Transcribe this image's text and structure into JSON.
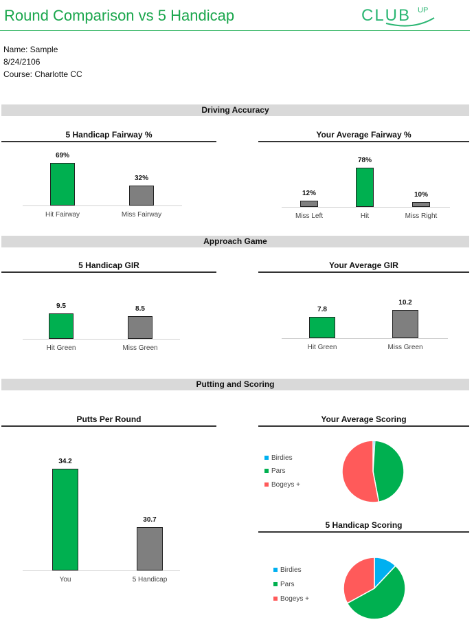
{
  "header": {
    "title": "Round Comparison vs 5 Handicap",
    "logo_text": "CLUBUP"
  },
  "info": {
    "name": "Name: Sample",
    "date": "8/24/2106",
    "course": "Course: Charlotte CC"
  },
  "sections": [
    "Driving Accuracy",
    "Approach Game",
    "Putting and Scoring"
  ],
  "colors": {
    "green": "#00b050",
    "gray": "#7f7f7f",
    "blue": "#00b0f0",
    "red": "#ff5a5a",
    "brand": "#1aa64c"
  },
  "chart_data": [
    {
      "type": "bar",
      "title": "5 Handicap Fairway %",
      "categories": [
        "Hit Fairway",
        "Miss Fairway"
      ],
      "values": [
        69,
        32
      ],
      "labels": [
        "69%",
        "32%"
      ],
      "bar_colors": [
        "green",
        "gray"
      ]
    },
    {
      "type": "bar",
      "title": "Your Average Fairway %",
      "categories": [
        "Miss Left",
        "Hit",
        "Miss Right"
      ],
      "values": [
        12,
        78,
        10
      ],
      "labels": [
        "12%",
        "78%",
        "10%"
      ],
      "bar_colors": [
        "gray",
        "green",
        "gray"
      ]
    },
    {
      "type": "bar",
      "title": "5 Handicap GIR",
      "categories": [
        "Hit Green",
        "Miss Green"
      ],
      "values": [
        9.5,
        8.5
      ],
      "labels": [
        "9.5",
        "8.5"
      ],
      "bar_colors": [
        "green",
        "gray"
      ]
    },
    {
      "type": "bar",
      "title": "Your Average GIR",
      "categories": [
        "Hit Green",
        "Miss Green"
      ],
      "values": [
        7.8,
        10.2
      ],
      "labels": [
        "7.8",
        "10.2"
      ],
      "bar_colors": [
        "green",
        "gray"
      ]
    },
    {
      "type": "bar",
      "title": "Putts Per Round",
      "categories": [
        "You",
        "5 Handicap"
      ],
      "values": [
        34.2,
        30.7
      ],
      "labels": [
        "34.2",
        "30.7"
      ],
      "bar_colors": [
        "green",
        "gray"
      ]
    },
    {
      "type": "pie",
      "title": "Your Average Scoring",
      "categories": [
        "Birdies",
        "Pars",
        "Bogeys +"
      ],
      "values": [
        1,
        46,
        53
      ],
      "slice_colors": [
        "blue",
        "green",
        "red"
      ],
      "legend": "left"
    },
    {
      "type": "pie",
      "title": "5 Handicap Scoring",
      "categories": [
        "Birdies",
        "Pars",
        "Bogeys +"
      ],
      "values": [
        12,
        55,
        33
      ],
      "slice_colors": [
        "blue",
        "green",
        "red"
      ],
      "legend": "left"
    }
  ]
}
